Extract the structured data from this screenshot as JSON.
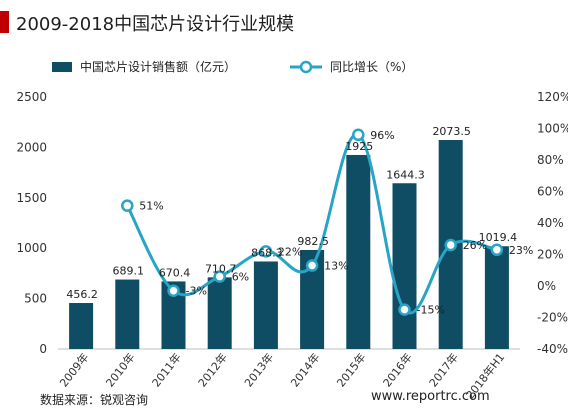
{
  "title": "2009-2018中国芯片设计行业规模",
  "source": "数据来源：锐观咨询",
  "watermark": "www.reportrc.com",
  "chart_data": {
    "type": "bar",
    "categories": [
      "2009年",
      "2010年",
      "2011年",
      "2012年",
      "2013年",
      "2014年",
      "2015年",
      "2016年",
      "2017年",
      "2018年H1"
    ],
    "series": [
      {
        "name": "中国芯片设计销售额（亿元）",
        "type": "bar",
        "axis": "left",
        "values": [
          456.2,
          689.1,
          670.4,
          710.7,
          868.3,
          982.5,
          1925,
          1644.3,
          2073.5,
          1019.4
        ],
        "labels": [
          "456.2",
          "689.1",
          "670.4",
          "710.7",
          "868.3",
          "982.5",
          "1925",
          "1644.3",
          "2073.5",
          "1019.4"
        ]
      },
      {
        "name": "同比增长（%）",
        "type": "line",
        "axis": "right",
        "values": [
          null,
          51,
          -3,
          6,
          22,
          13,
          96,
          -15,
          26,
          23
        ],
        "labels": [
          "",
          "51%",
          "-3%",
          "6%",
          "22%",
          "13%",
          "96%",
          "-15%",
          "26%",
          "23%"
        ]
      }
    ],
    "y_left": {
      "range": [
        0,
        2500
      ],
      "ticks": [
        "0",
        "500",
        "1000",
        "1500",
        "2000",
        "2500"
      ]
    },
    "y_right": {
      "range": [
        -40,
        120
      ],
      "ticks": [
        "-40%",
        "-20%",
        "0%",
        "20%",
        "40%",
        "60%",
        "80%",
        "100%",
        "120%"
      ]
    },
    "legend_position": "top",
    "grid": false,
    "colors": {
      "bar": "#0e4d63",
      "line": "#27a4c6",
      "title_accent": "#c00000"
    }
  }
}
